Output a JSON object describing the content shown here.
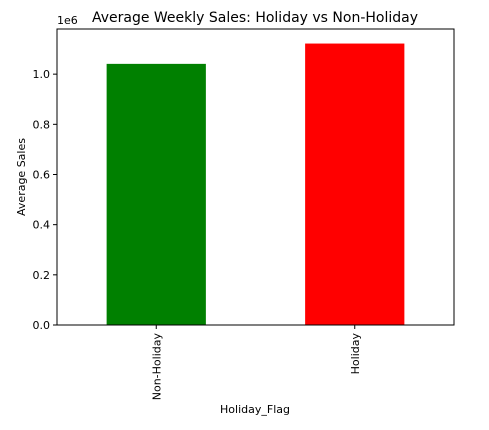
{
  "chart_data": {
    "type": "bar",
    "title": "Average Weekly Sales: Holiday vs Non-Holiday",
    "xlabel": "Holiday_Flag",
    "ylabel": "Average Sales",
    "y_offset_label": "1e6",
    "categories": [
      "Non-Holiday",
      "Holiday"
    ],
    "values": [
      1041000,
      1122000
    ],
    "bar_colors": [
      "#008000",
      "#ff0000"
    ],
    "ylim": [
      0,
      1180000
    ],
    "yticks": [
      0,
      200000,
      400000,
      600000,
      800000,
      1000000
    ],
    "ytick_labels": [
      "0.0",
      "0.2",
      "0.4",
      "0.6",
      "0.8",
      "1.0"
    ],
    "grid": false,
    "legend": "none"
  }
}
